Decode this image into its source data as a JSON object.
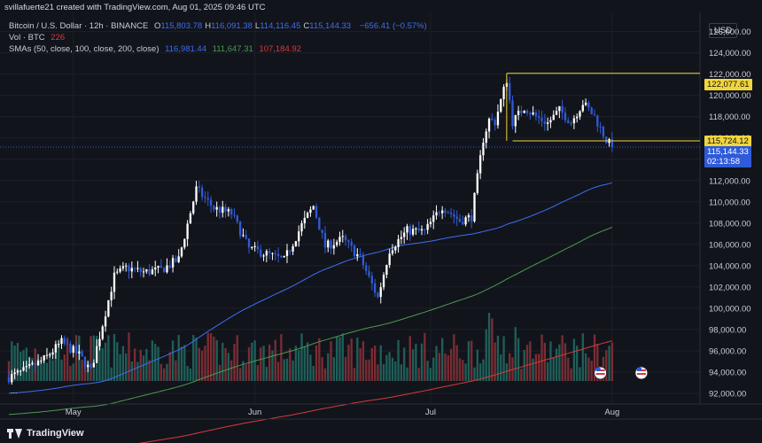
{
  "attribution": "svillafuerte21 created with TradingView.com, Aug 01, 2025 09:46 UTC",
  "legend": {
    "symbol": "Bitcoin / U.S. Dollar · 12h · BINANCE",
    "ohlc": [
      {
        "k": "O",
        "v": "115,803.78"
      },
      {
        "k": "H",
        "v": "116,091.38"
      },
      {
        "k": "L",
        "v": "114,116.45"
      },
      {
        "k": "C",
        "v": "115,144.33"
      }
    ],
    "change": "−656.41 (−0.57%)",
    "vol_label": "Vol · BTC",
    "vol_value": "226",
    "sma_label": "SMAs (50, close, 100, close, 200, close)",
    "sma_values": [
      "116,981.44",
      "111,647.31",
      "107,184.92"
    ]
  },
  "currency": "USD",
  "more_indicator": "...",
  "footer_logo": "TradingView",
  "colors": {
    "background": "#12141c",
    "up_candle": "#ffffff",
    "down_candle": "#2f5bd9",
    "sma50": "#3c6ff0",
    "sma100": "#4a9b50",
    "sma200": "#d63a3a",
    "vol_up": "#1f5f59",
    "vol_down": "#7a2d33",
    "level_line": "#f2d53c",
    "text": "#c9ccd6"
  },
  "price_labels": [
    {
      "id": "level-high",
      "text": "122,077.61",
      "price": 122077.61
    },
    {
      "id": "level-low",
      "text": "115,724.12",
      "price": 115724.12
    },
    {
      "id": "last-price",
      "text": "115,144.33",
      "price": 115144.33,
      "countdown": "02:13:58"
    }
  ],
  "chart_data": {
    "type": "candlestick",
    "symbol": "BTCUSD",
    "interval": "12h",
    "y_ticks": [
      126000,
      124000,
      122000,
      120000,
      118000,
      116000,
      114000,
      112000,
      110000,
      108000,
      106000,
      104000,
      102000,
      100000,
      98000,
      96000,
      94000,
      92000
    ],
    "y_tick_labels": [
      "126,000.00",
      "124,000.00",
      "122,000.00",
      "120,000.00",
      "118,000.00",
      "116,000.00",
      "114,000.00",
      "112,000.00",
      "110,000.00",
      "108,000.00",
      "106,000.00",
      "104,000.00",
      "102,000.00",
      "100,000.00",
      "98,000.00",
      "96,000.00",
      "94,000.00",
      "92,000.00"
    ],
    "ylim": [
      91000,
      127800
    ],
    "x_labels": [
      {
        "label": "May",
        "date": "2025-05-01"
      },
      {
        "label": "Jun",
        "date": "2025-06-01"
      },
      {
        "label": "Jul",
        "date": "2025-07-01"
      },
      {
        "label": "Aug",
        "date": "2025-08-01"
      }
    ],
    "xlim": [
      "2025-04-20",
      "2025-08-16"
    ],
    "close_anchors": [
      {
        "date": "2025-04-20",
        "close": 93500
      },
      {
        "date": "2025-04-23",
        "close": 94200
      },
      {
        "date": "2025-04-26",
        "close": 95200
      },
      {
        "date": "2025-04-29",
        "close": 96800
      },
      {
        "date": "2025-05-02",
        "close": 95600
      },
      {
        "date": "2025-05-04",
        "close": 94100
      },
      {
        "date": "2025-05-06",
        "close": 98500
      },
      {
        "date": "2025-05-08",
        "close": 103000
      },
      {
        "date": "2025-05-10",
        "close": 103800
      },
      {
        "date": "2025-05-13",
        "close": 103400
      },
      {
        "date": "2025-05-16",
        "close": 103600
      },
      {
        "date": "2025-05-19",
        "close": 104600
      },
      {
        "date": "2025-05-21",
        "close": 109000
      },
      {
        "date": "2025-05-22",
        "close": 111200
      },
      {
        "date": "2025-05-25",
        "close": 109400
      },
      {
        "date": "2025-05-28",
        "close": 108900
      },
      {
        "date": "2025-05-31",
        "close": 105600
      },
      {
        "date": "2025-06-03",
        "close": 105100
      },
      {
        "date": "2025-06-06",
        "close": 104500
      },
      {
        "date": "2025-06-09",
        "close": 107800
      },
      {
        "date": "2025-06-11",
        "close": 109600
      },
      {
        "date": "2025-06-13",
        "close": 105800
      },
      {
        "date": "2025-06-16",
        "close": 106500
      },
      {
        "date": "2025-06-19",
        "close": 104700
      },
      {
        "date": "2025-06-22",
        "close": 101000
      },
      {
        "date": "2025-06-24",
        "close": 105500
      },
      {
        "date": "2025-06-27",
        "close": 107300
      },
      {
        "date": "2025-06-30",
        "close": 107200
      },
      {
        "date": "2025-07-03",
        "close": 109600
      },
      {
        "date": "2025-07-06",
        "close": 108200
      },
      {
        "date": "2025-07-08",
        "close": 108600
      },
      {
        "date": "2025-07-10",
        "close": 115900
      },
      {
        "date": "2025-07-11",
        "close": 117700
      },
      {
        "date": "2025-07-12",
        "close": 117500
      },
      {
        "date": "2025-07-14",
        "close": 121500
      },
      {
        "date": "2025-07-15",
        "close": 117500
      },
      {
        "date": "2025-07-17",
        "close": 118900
      },
      {
        "date": "2025-07-19",
        "close": 118000
      },
      {
        "date": "2025-07-21",
        "close": 117400
      },
      {
        "date": "2025-07-23",
        "close": 118600
      },
      {
        "date": "2025-07-25",
        "close": 117500
      },
      {
        "date": "2025-07-27",
        "close": 119300
      },
      {
        "date": "2025-07-29",
        "close": 118000
      },
      {
        "date": "2025-07-31",
        "close": 115800
      },
      {
        "date": "2025-08-01",
        "close": 115144
      }
    ],
    "series": [
      {
        "name": "SMA 50",
        "last": 116981.44
      },
      {
        "name": "SMA 100",
        "last": 111647.31
      },
      {
        "name": "SMA 200",
        "last": 107184.92
      }
    ],
    "levels": [
      {
        "price": 122077.61,
        "from": "2025-07-14",
        "to": "2025-08-16"
      },
      {
        "price": 115724.12,
        "from": "2025-07-15",
        "to": "2025-08-16"
      }
    ],
    "last_price": 115144.33,
    "grid": true,
    "volume_pane": true
  }
}
